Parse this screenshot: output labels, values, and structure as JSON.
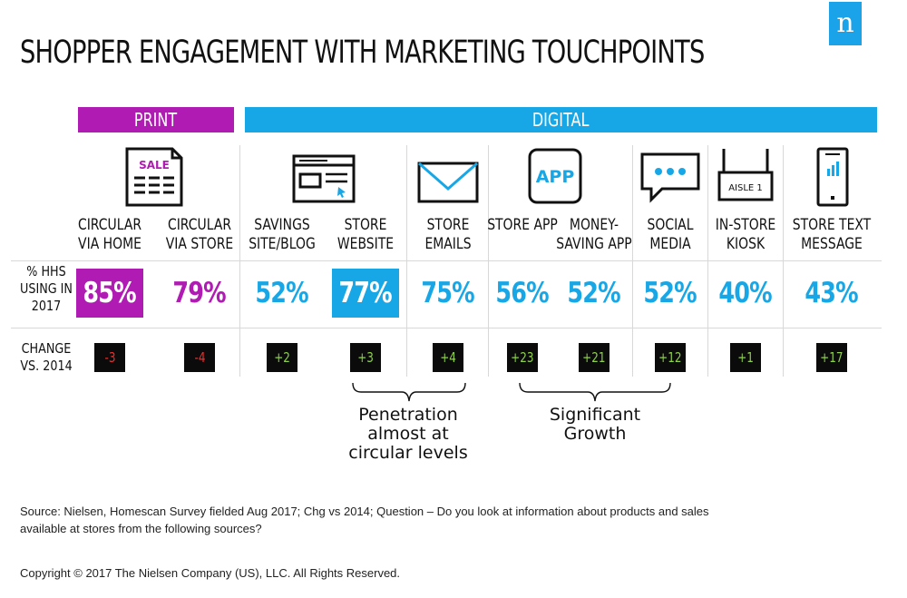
{
  "title": "SHOPPER ENGAGEMENT WITH MARKETING TOUCHPOINTS",
  "logo_letter": "n",
  "bands": {
    "print": "PRINT",
    "digital": "DIGITAL"
  },
  "row_labels": {
    "pct": "% HHS USING IN 2017",
    "change": "CHANGE VS. 2014"
  },
  "icons": {
    "sale_text": "SALE",
    "app_text": "APP",
    "aisle_text": "AISLE 1"
  },
  "colors": {
    "print": "#b01bb3",
    "digital": "#18a7e6",
    "change_negative": "#e8312f",
    "change_positive": "#8ed14b",
    "highlight_text": "#ffffff"
  },
  "chart_data": {
    "type": "table",
    "title": "SHOPPER ENGAGEMENT WITH MARKETING TOUCHPOINTS",
    "columns": [
      {
        "label": "CIRCULAR VIA HOME",
        "group": "PRINT",
        "icon": "sale-circular-icon",
        "pct": "85%",
        "change": "-3",
        "highlight": true
      },
      {
        "label": "CIRCULAR VIA STORE",
        "group": "PRINT",
        "icon": "",
        "pct": "79%",
        "change": "-4",
        "highlight": false
      },
      {
        "label": "SAVINGS SITE/BLOG",
        "group": "DIGITAL",
        "icon": "",
        "pct": "52%",
        "change": "+2",
        "highlight": false
      },
      {
        "label": "STORE WEBSITE",
        "group": "DIGITAL",
        "icon": "browser-window-icon",
        "pct": "77%",
        "change": "+3",
        "highlight": true
      },
      {
        "label": "STORE EMAILS",
        "group": "DIGITAL",
        "icon": "envelope-icon",
        "pct": "75%",
        "change": "+4",
        "highlight": false
      },
      {
        "label": "STORE APP",
        "group": "DIGITAL",
        "icon": "app-icon",
        "pct": "56%",
        "change": "+23",
        "highlight": false
      },
      {
        "label": "MONEY-SAVING APP",
        "group": "DIGITAL",
        "icon": "",
        "pct": "52%",
        "change": "+21",
        "highlight": false
      },
      {
        "label": "SOCIAL MEDIA",
        "group": "DIGITAL",
        "icon": "speech-bubble-icon",
        "pct": "52%",
        "change": "+12",
        "highlight": false
      },
      {
        "label": "IN-STORE KIOSK",
        "group": "DIGITAL",
        "icon": "kiosk-icon",
        "pct": "40%",
        "change": "+1",
        "highlight": false
      },
      {
        "label": "STORE TEXT MESSAGE",
        "group": "DIGITAL",
        "icon": "smartphone-icon",
        "pct": "43%",
        "change": "+17",
        "highlight": false
      }
    ]
  },
  "annotations": {
    "penetration": "Penetration almost at circular levels",
    "growth": "Significant Growth"
  },
  "source": "Source: Nielsen, Homescan Survey fielded Aug 2017; Chg vs 2014; Question – Do you look at information about products and sales available at stores from the following sources?",
  "copyright": "Copyright © 2017 The Nielsen Company (US), LLC. All Rights Reserved."
}
